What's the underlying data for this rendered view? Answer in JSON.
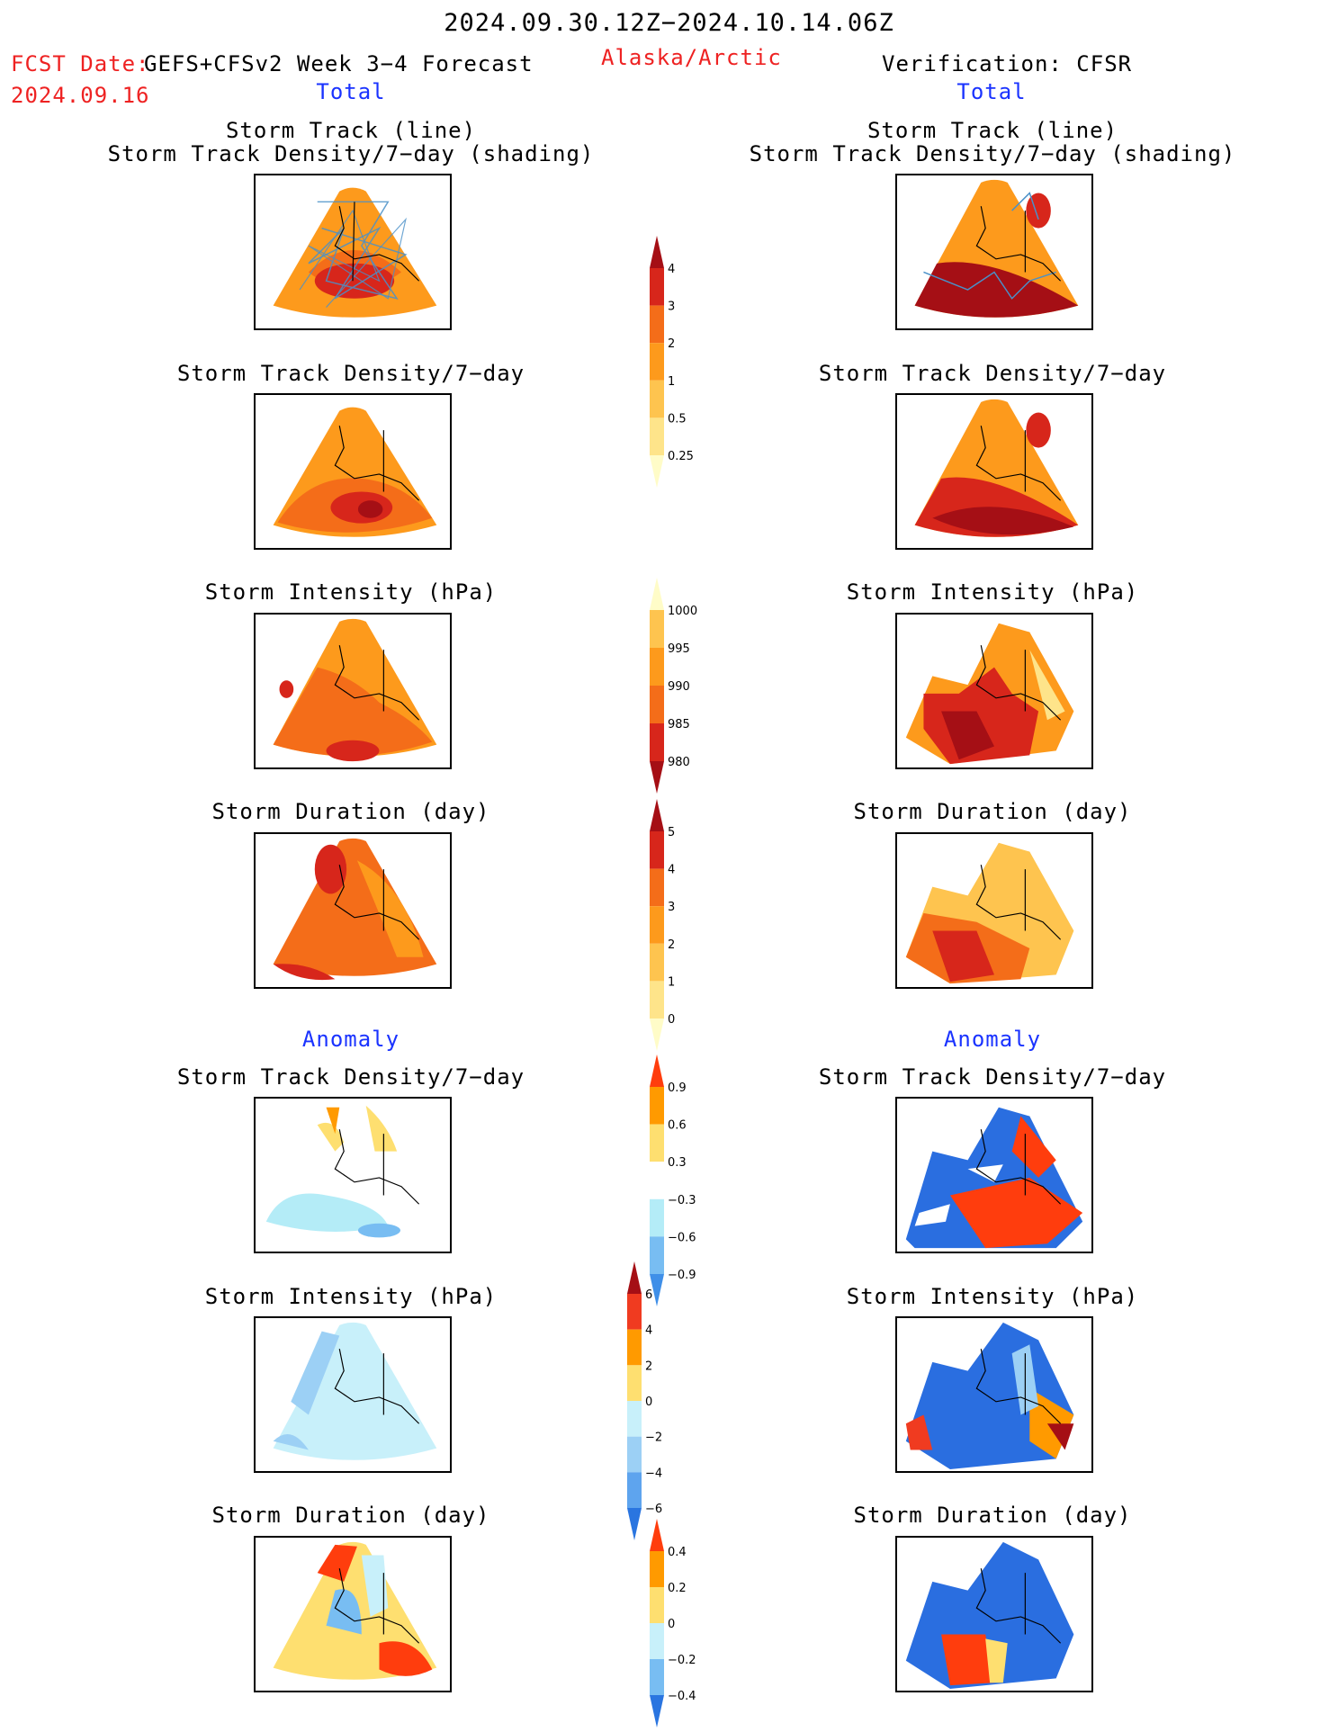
{
  "header": {
    "date_range": "2024.09.30.12Z−2024.10.14.06Z",
    "fcst_label": "FCST Date:",
    "model": "GEFS+CFSv2 Week 3−4 Forecast",
    "fcst_date": "2024.09.16",
    "region": "Alaska/Arctic",
    "verification": "Verification: CFSR",
    "total_left": "Total",
    "total_right": "Total"
  },
  "titles": {
    "track_line": "Storm Track (line)",
    "track_density_shading": "Storm Track Density/7−day (shading)",
    "track_density": "Storm Track Density/7−day",
    "intensity": "Storm Intensity (hPa)",
    "duration": "Storm Duration (day)",
    "anomaly_left": "Anomaly",
    "anomaly_right": "Anomaly"
  },
  "colorbars": {
    "density": {
      "labels": [
        "4",
        "3",
        "2",
        "1",
        "0.5",
        "0.25"
      ],
      "colors": [
        "#a50f15",
        "#d7261b",
        "#f46d19",
        "#fd9a1c",
        "#fec44f",
        "#fee48a",
        "#fffcc8"
      ]
    },
    "intensity": {
      "labels": [
        "1000",
        "995",
        "990",
        "985",
        "980"
      ],
      "colors": [
        "#fffcc8",
        "#fec44f",
        "#fd9a1c",
        "#f46d19",
        "#d7261b",
        "#a50f15"
      ]
    },
    "duration": {
      "labels": [
        "5",
        "4",
        "3",
        "2",
        "1",
        "0"
      ],
      "colors": [
        "#a50f15",
        "#d7261b",
        "#f46d19",
        "#fd9a1c",
        "#fec44f",
        "#fee48a",
        "#fffcc8"
      ]
    },
    "anom_density": {
      "labels": [
        "0.9",
        "0.6",
        "0.3",
        "−0.3",
        "−0.6",
        "−0.9"
      ],
      "colors": [
        "#ff3d0d",
        "#ff9a00",
        "#fedf70",
        "#ffffff",
        "#b4ecf7",
        "#78bdf2",
        "#3f8fe8"
      ]
    },
    "anom_intensity": {
      "labels": [
        "6",
        "4",
        "2",
        "0",
        "−2",
        "−4",
        "−6"
      ],
      "colors": [
        "#a50f15",
        "#f03b20",
        "#ff9a00",
        "#fedf70",
        "#c8f0fa",
        "#9cd0f5",
        "#5ea4ee",
        "#2a75e0"
      ]
    },
    "anom_duration": {
      "labels": [
        "0.4",
        "0.2",
        "0",
        "−0.2",
        "−0.4"
      ],
      "colors": [
        "#ff3d0d",
        "#ff9a00",
        "#fedf70",
        "#c8f0fa",
        "#78bdf2",
        "#2a75e0"
      ]
    }
  }
}
